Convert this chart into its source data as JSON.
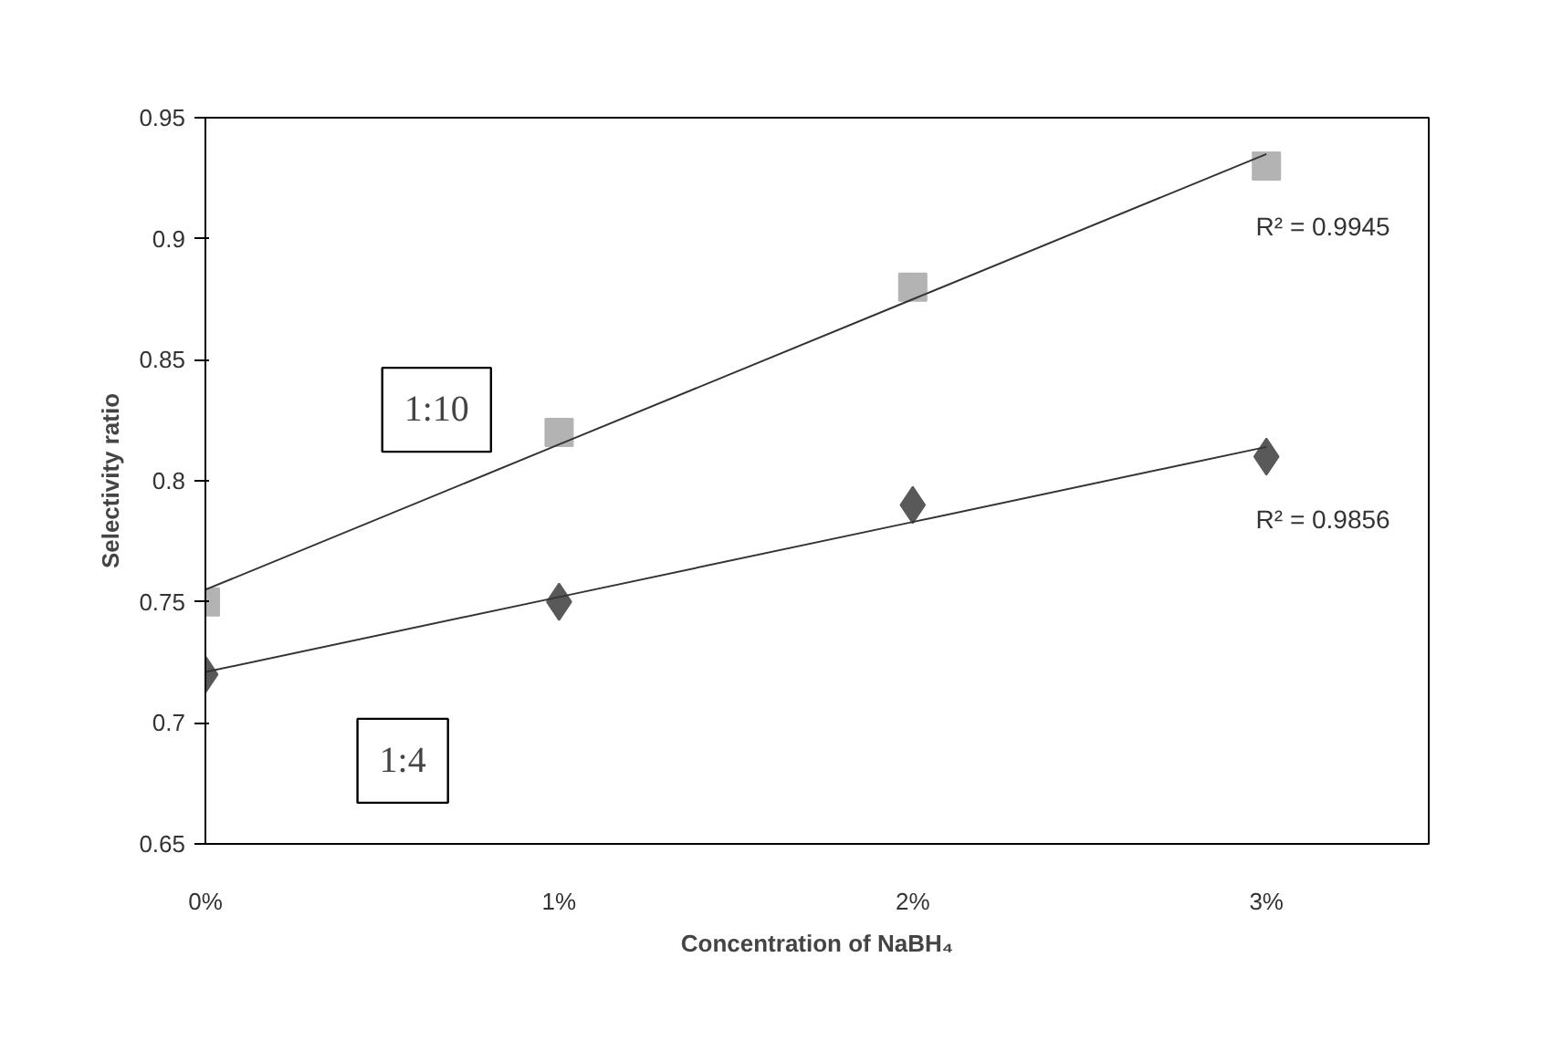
{
  "chart_data": {
    "type": "scatter",
    "xlabel": "Concentration of NaBH₄",
    "ylabel": "Selectivity ratio",
    "categories": [
      "0%",
      "1%",
      "2%",
      "3%"
    ],
    "ylim": [
      0.65,
      0.95
    ],
    "yticks": [
      0.65,
      0.7,
      0.75,
      0.8,
      0.85,
      0.9,
      0.95
    ],
    "grid": false,
    "series": [
      {
        "color": "#b3b3b3",
        "marker": "square",
        "values": [
          0.75,
          0.82,
          0.88,
          0.93
        ]
      },
      {
        "color": "#595959",
        "marker": "diamond",
        "values": [
          0.72,
          0.75,
          0.79,
          0.81
        ]
      },
      {
        "type": "line",
        "color": "#333333",
        "marker": "none",
        "line_style": "solid",
        "values": [
          0.755,
          0.815,
          0.875,
          0.935
        ]
      },
      {
        "type": "line",
        "color": "#333333",
        "marker": "none",
        "line_style": "solid",
        "values": [
          0.721,
          0.752,
          0.783,
          0.814
        ]
      }
    ],
    "annotations": [
      "R² = 0.9945",
      "R² = 0.9856",
      "1:10",
      "1:4"
    ]
  }
}
